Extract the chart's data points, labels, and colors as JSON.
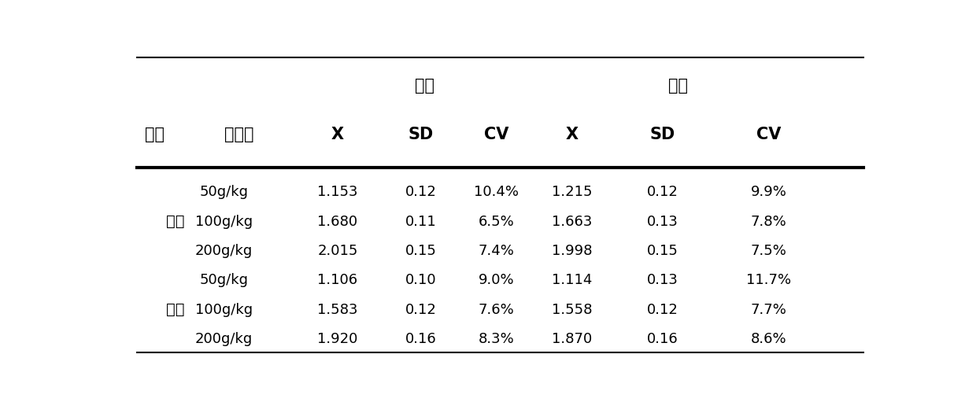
{
  "title_left": "批内",
  "title_right": "批间",
  "col_headers": [
    "样品",
    "添加量",
    "X",
    "SD",
    "CV",
    "X",
    "SD",
    "CV"
  ],
  "group_labels": [
    "鸡肉",
    "鸭肉"
  ],
  "group_label_row": [
    1,
    4
  ],
  "rows": [
    [
      "50g/kg",
      "1.153",
      "0.12",
      "10.4%",
      "1.215",
      "0.12",
      "9.9%"
    ],
    [
      "100g/kg",
      "1.680",
      "0.11",
      "6.5%",
      "1.663",
      "0.13",
      "7.8%"
    ],
    [
      "200g/kg",
      "2.015",
      "0.15",
      "7.4%",
      "1.998",
      "0.15",
      "7.5%"
    ],
    [
      "50g/kg",
      "1.106",
      "0.10",
      "9.0%",
      "1.114",
      "0.13",
      "11.7%"
    ],
    [
      "100g/kg",
      "1.583",
      "0.12",
      "7.6%",
      "1.558",
      "0.12",
      "7.7%"
    ],
    [
      "200g/kg",
      "1.920",
      "0.16",
      "8.3%",
      "1.870",
      "0.16",
      "8.6%"
    ]
  ],
  "bg_color": "#ffffff",
  "text_color": "#000000",
  "fig_width": 12.4,
  "fig_height": 5.11,
  "dpi": 100
}
